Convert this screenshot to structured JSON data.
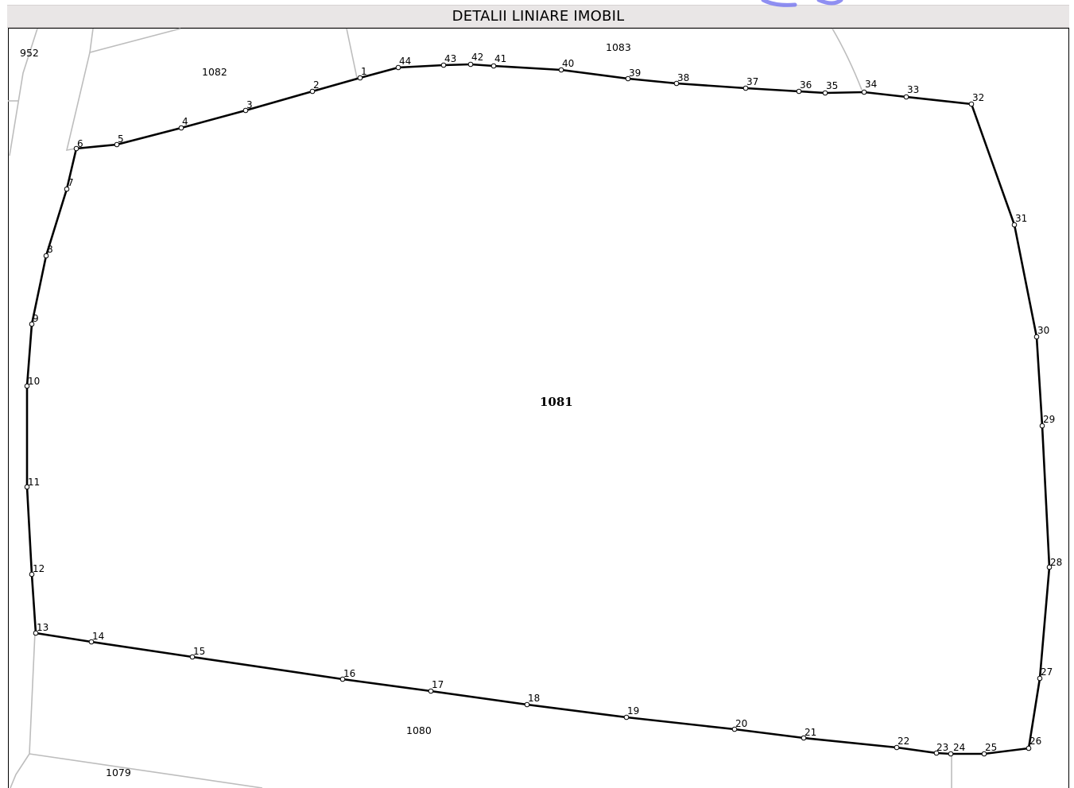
{
  "header": {
    "title": "DETALII LINIARE IMOBIL"
  },
  "map": {
    "main_parcel": "1081",
    "neighbors": {
      "n952": "952",
      "n1082": "1082",
      "n1083": "1083",
      "n1080": "1080",
      "n1079": "1079"
    },
    "vertex_labels": [
      "1",
      "2",
      "3",
      "4",
      "5",
      "6",
      "7",
      "8",
      "9",
      "10",
      "11",
      "12",
      "13",
      "14",
      "15",
      "16",
      "17",
      "18",
      "19",
      "20",
      "21",
      "22",
      "23",
      "24",
      "25",
      "26",
      "27",
      "28",
      "29",
      "30",
      "31",
      "32",
      "33",
      "34",
      "35",
      "36",
      "37",
      "38",
      "39",
      "40",
      "41",
      "42",
      "43",
      "44"
    ],
    "colors": {
      "boundary": "#000000",
      "neighbor_lines": "#bdbdbd",
      "header_bg": "#e9e6e6",
      "watermark": "#7b7bf0"
    }
  }
}
